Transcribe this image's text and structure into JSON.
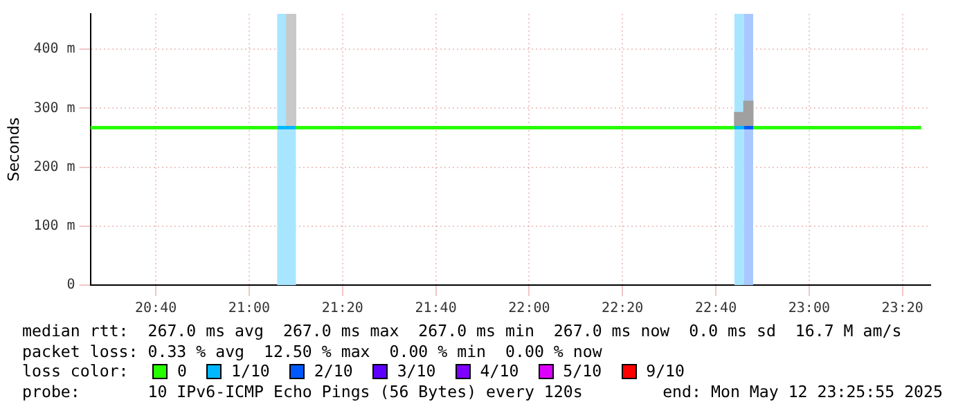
{
  "chart_data": {
    "type": "line",
    "ylabel": "Seconds",
    "legend_title": "loss color:",
    "legend": "bottom",
    "grid": true,
    "marker": "none",
    "xlim": [
      20.433,
      23.433
    ],
    "xticks": [
      {
        "value": 20.6667,
        "label": "20:40"
      },
      {
        "value": 21,
        "label": "21:00"
      },
      {
        "value": 21.3333,
        "label": "21:20"
      },
      {
        "value": 21.6667,
        "label": "21:40"
      },
      {
        "value": 22,
        "label": "22:00"
      },
      {
        "value": 22.3333,
        "label": "22:20"
      },
      {
        "value": 22.6667,
        "label": "22:40"
      },
      {
        "value": 23,
        "label": "23:00"
      },
      {
        "value": 23.3333,
        "label": "23:20"
      }
    ],
    "ylim": [
      0,
      460
    ],
    "yticks": [
      0,
      {
        "value": 100,
        "label": "100 m"
      },
      {
        "value": 200,
        "label": "200 m"
      },
      {
        "value": 300,
        "label": "300 m"
      },
      {
        "value": 400,
        "label": "400 m"
      }
    ],
    "series": [
      {
        "type": "bar",
        "colors": [
          "#c8c8c8",
          "#a0a0a0",
          "#a0a0a0"
        ],
        "x": [
          21.15,
          22.75,
          22.783
        ],
        "base": [
          267,
          267,
          267
        ],
        "values": [
          193,
          26,
          45
        ]
      },
      {
        "name": "0",
        "color": "#26ff00",
        "x": [
          20.433,
          21.1,
          21.133,
          21.167,
          22.733,
          22.767,
          22.8,
          23.4
        ],
        "values": [
          267,
          267,
          null,
          267,
          267,
          null,
          267,
          267
        ]
      },
      {
        "name": "1/10",
        "color": "#00b8ff",
        "x": [
          21.1,
          21.167,
          21.2,
          22.733,
          22.767
        ],
        "values": [
          267,
          267,
          null,
          267,
          267
        ]
      },
      {
        "name": "2/10",
        "color": "#0059ff",
        "x": [
          22.767,
          22.8
        ],
        "values": [
          267,
          267
        ]
      },
      {
        "name": "3/10",
        "color": "#5e00ff"
      },
      {
        "name": "4/10",
        "color": "#7e00ff"
      },
      {
        "name": "5/10",
        "color": "#dd00ff"
      },
      {
        "name": "9/10",
        "color": "#ff0000"
      }
    ],
    "bands": [
      {
        "axis": "x",
        "from": 21.1,
        "to": 21.167,
        "color": "#a8e6ff"
      },
      {
        "axis": "x",
        "from": 22.733,
        "to": 22.767,
        "color": "#a8e6ff"
      },
      {
        "axis": "x",
        "from": 22.767,
        "to": 22.8,
        "color": "#a8c8ff"
      }
    ],
    "annotations": [
      "median rtt:  267.0 ms avg  267.0 ms max  267.0 ms min  267.0 ms now  0.0 ms sd  16.7 M am/s",
      "packet loss: 0.33 % avg  12.50 % max  0.00 % min  0.00 % now",
      "probe:       10 IPv6-ICMP Echo Pings (56 Bytes) every 120s",
      "end: Mon May 12 23:25:55 2025"
    ]
  }
}
